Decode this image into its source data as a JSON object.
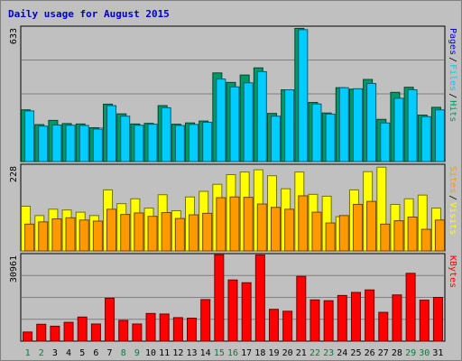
{
  "title": "Daily usage for August 2015",
  "chart_data": {
    "type": "bar",
    "title": "Daily usage for August 2015",
    "x": [
      1,
      2,
      3,
      4,
      5,
      6,
      7,
      8,
      9,
      10,
      11,
      12,
      13,
      14,
      15,
      16,
      17,
      18,
      19,
      20,
      21,
      22,
      23,
      24,
      25,
      26,
      27,
      28,
      29,
      30,
      31
    ],
    "weekend_days": [
      1,
      2,
      8,
      9,
      15,
      16,
      22,
      23,
      29,
      30
    ],
    "panels": [
      {
        "name": "hits",
        "ymax": 633,
        "ymax_label": "633",
        "right_labels": [
          "Pages",
          "Files",
          "Hits"
        ],
        "series": [
          {
            "name": "Hits",
            "color": "#009966",
            "values": [
              245,
              175,
              195,
              180,
              178,
              160,
              272,
              226,
              178,
              181,
              265,
              177,
              183,
              192,
              420,
              375,
              410,
              444,
              228,
              340,
              631,
              280,
              230,
              350,
              343,
              389,
              200,
              328,
              352,
              220,
              257
            ]
          },
          {
            "name": "Files",
            "color": "#00ccff",
            "values": [
              240,
              168,
              173,
              172,
              171,
              154,
              265,
              215,
              172,
              177,
              255,
              171,
              176,
              186,
              391,
              354,
              373,
              426,
              215,
              340,
              625,
              273,
              225,
              350,
              345,
              370,
              183,
              300,
              340,
              213,
              245
            ]
          },
          {
            "name": "Pages",
            "color": "#0000ff",
            "values": [
              0,
              0,
              0,
              0,
              0,
              0,
              0,
              0,
              0,
              0,
              0,
              0,
              0,
              0,
              0,
              0,
              0,
              0,
              0,
              0,
              0,
              0,
              0,
              0,
              0,
              0,
              0,
              0,
              0,
              0,
              0
            ]
          }
        ]
      },
      {
        "name": "visits",
        "ymax": 228,
        "ymax_label": "228",
        "right_labels": [
          "Sites",
          "Visits"
        ],
        "series": [
          {
            "name": "Visits",
            "color": "#ffff00",
            "values": [
              120,
              95,
              112,
              110,
              104,
              95,
              164,
              127,
              140,
              115,
              151,
              108,
              145,
              160,
              179,
              205,
              212,
              218,
              202,
              167,
              212,
              152,
              147,
              92,
              164,
              213,
              225,
              125,
              140,
              150,
              115
            ]
          },
          {
            "name": "Sites",
            "color": "#ff9900",
            "values": [
              72,
              78,
              86,
              89,
              83,
              80,
              112,
              98,
              102,
              93,
              103,
              87,
              97,
              101,
              143,
              145,
              144,
              126,
              117,
              112,
              148,
              104,
              75,
              95,
              125,
              133,
              72,
              81,
              91,
              58,
              83
            ]
          }
        ]
      },
      {
        "name": "kbytes",
        "ymax": 30961,
        "ymax_label": "30961",
        "right_labels": [
          "KBytes"
        ],
        "series": [
          {
            "name": "KBytes",
            "color": "#ff0000",
            "values": [
              3300,
              6100,
              5400,
              6800,
              8700,
              6200,
              15500,
              7500,
              6200,
              10000,
              9800,
              8500,
              8300,
              15000,
              31200,
              22100,
              21100,
              31100,
              11500,
              10800,
              23400,
              14900,
              14600,
              16500,
              17600,
              18500,
              10400,
              16700,
              24500,
              14800,
              15800
            ]
          }
        ]
      }
    ]
  }
}
